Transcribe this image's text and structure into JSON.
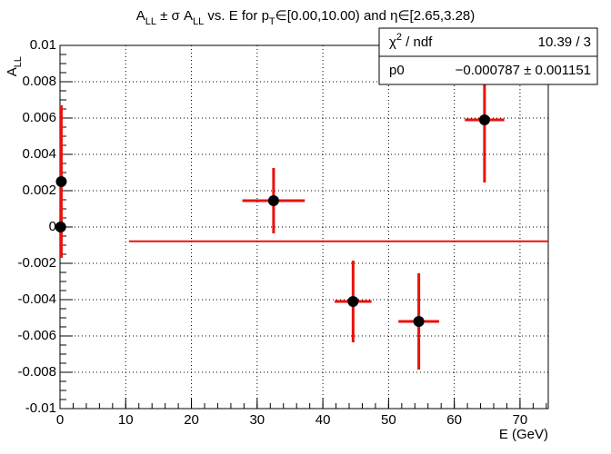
{
  "chart_data": {
    "type": "errorbar",
    "title_parts": [
      "A",
      "LL",
      " ± σ A",
      "LL",
      " vs. E for p",
      "T",
      "∈[0.00,10.00) and η∈[2.65,3.28)"
    ],
    "ylabel_parts": [
      "A",
      "LL"
    ],
    "xlabel": "E (GeV)",
    "x": [
      0.2,
      0.1,
      32.5,
      44.6,
      54.6,
      64.6
    ],
    "xerr": [
      0.3,
      0.3,
      4.75,
      2.8,
      3.1,
      3.0
    ],
    "values": [
      0.0025,
      0,
      0.00145,
      -0.0041,
      -0.0052,
      0.0059
    ],
    "yerr": [
      0.0042,
      0.0005,
      0.0018,
      0.00225,
      0.00265,
      0.00345
    ],
    "marker_color": "#000000",
    "error_color": "#e8120c",
    "xlim": [
      0,
      74.3
    ],
    "ylim": [
      -0.01,
      0.01
    ],
    "xticks": [
      0,
      10,
      20,
      30,
      40,
      50,
      60,
      70
    ],
    "yticks": [
      -0.01,
      -0.008,
      -0.006,
      -0.004,
      -0.002,
      0,
      0.002,
      0.004,
      0.006,
      0.008,
      0.01
    ],
    "grid": true,
    "fit": {
      "p0": -0.000787,
      "xrange": [
        10.5,
        74.3
      ],
      "color": "#e8120c"
    },
    "stats": {
      "chi2_parts": [
        "χ",
        "2",
        " / ndf"
      ],
      "chi2_value": "10.39 / 3",
      "p0_label": "p0",
      "p0_value": "−0.000787 ± 0.001151"
    }
  }
}
